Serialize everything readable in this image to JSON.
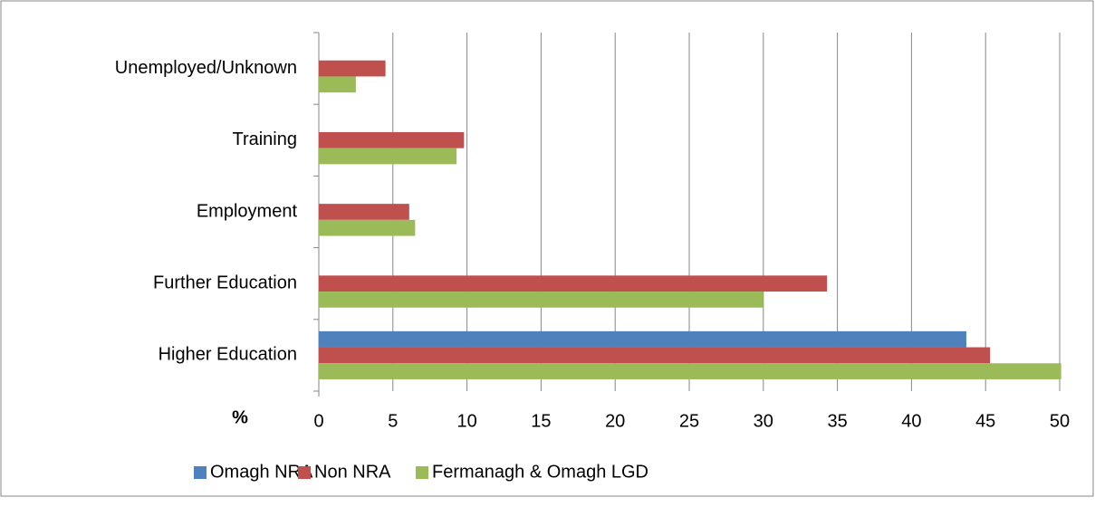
{
  "chart_data": {
    "type": "hbar",
    "categories": [
      "Higher Education",
      "Further Education",
      "Employment",
      "Training",
      "Unemployed/Unknown"
    ],
    "series": [
      {
        "name": "Omagh NRA",
        "color": "#4f81bd",
        "values": [
          43.7,
          null,
          null,
          null,
          null
        ]
      },
      {
        "name": "Non NRA",
        "color": "#c0504d",
        "values": [
          45.3,
          34.3,
          6.1,
          9.8,
          4.5
        ]
      },
      {
        "name": "Fermanagh & Omagh LGD",
        "color": "#9bbb59",
        "values": [
          50.1,
          30.0,
          6.5,
          9.3,
          2.5
        ]
      }
    ],
    "xlabel": "%",
    "xlim": [
      0,
      50
    ],
    "xticks": [
      0,
      5,
      10,
      15,
      20,
      25,
      30,
      35,
      40,
      45,
      50
    ],
    "grid": true,
    "legend": "bottom"
  }
}
